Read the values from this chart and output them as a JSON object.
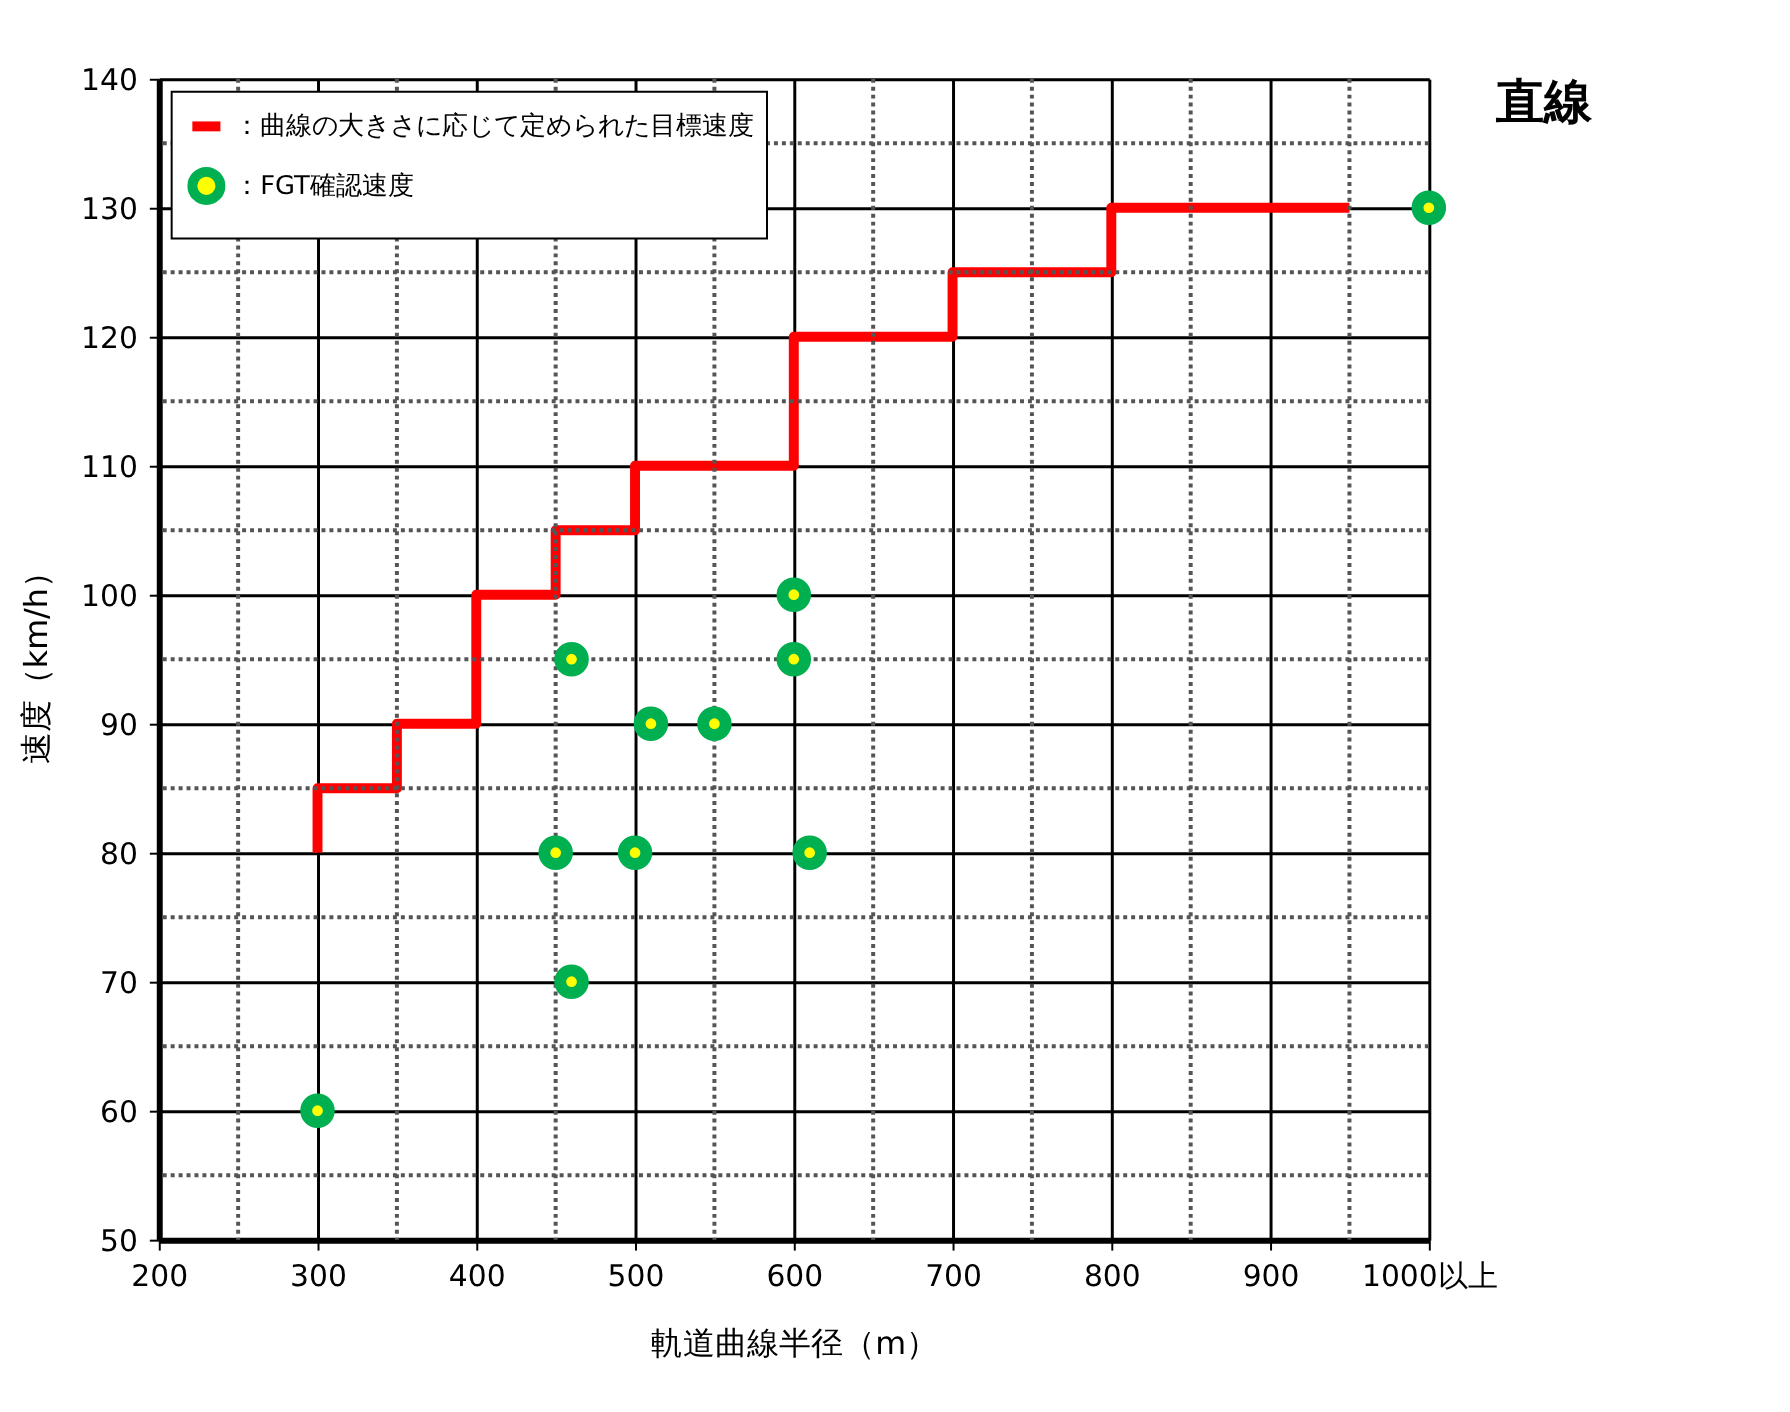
{
  "chart_data": {
    "type": "line",
    "xlabel": "軌道曲線半径（m）",
    "ylabel": "速度（km/h）",
    "xlim": [
      200,
      1000
    ],
    "ylim": [
      50,
      140
    ],
    "xticks": [
      200,
      {
        "value": 250,
        "label": null
      },
      300,
      {
        "value": 350,
        "label": null
      },
      400,
      {
        "value": 450,
        "label": null
      },
      500,
      {
        "value": 550,
        "label": null
      },
      600,
      {
        "value": 650,
        "label": null
      },
      700,
      {
        "value": 750,
        "label": null
      },
      800,
      {
        "value": 850,
        "label": null
      },
      900,
      {
        "value": 950,
        "label": null
      },
      {
        "value": 1000,
        "label": "1000以上"
      }
    ],
    "yticks": [
      50,
      {
        "value": 55,
        "label": null
      },
      60,
      {
        "value": 65,
        "label": null
      },
      70,
      {
        "value": 75,
        "label": null
      },
      80,
      {
        "value": 85,
        "label": null
      },
      90,
      {
        "value": 95,
        "label": null
      },
      100,
      {
        "value": 105,
        "label": null
      },
      110,
      {
        "value": 115,
        "label": null
      },
      120,
      {
        "value": 125,
        "label": null
      },
      130,
      {
        "value": 135,
        "label": null
      },
      140
    ],
    "grid": true,
    "legend": "top left",
    "series": [
      {
        "name": "：曲線の大きさに応じて定められた目標速度",
        "type": "line",
        "color": "#ff0000",
        "marker": "none",
        "line_style": "solid",
        "x": [
          300,
          300,
          350,
          350,
          400,
          400,
          450,
          450,
          500,
          500,
          600,
          600,
          700,
          700,
          800,
          800,
          950
        ],
        "values": [
          80,
          85,
          85,
          90,
          90,
          100,
          100,
          105,
          105,
          110,
          110,
          120,
          120,
          125,
          125,
          130,
          130
        ]
      },
      {
        "name": "：FGT確認速度",
        "type": "scatter",
        "color": "#00b050",
        "marker": "circle",
        "x": [
          300,
          450,
          460,
          460,
          510,
          550,
          500,
          600,
          600,
          610,
          1000
        ],
        "values": [
          60,
          80,
          70,
          95,
          90,
          90,
          80,
          100,
          95,
          80,
          130
        ]
      }
    ],
    "annotations": [
      {
        "text": "直線",
        "x": 1000,
        "y": 130
      }
    ]
  }
}
